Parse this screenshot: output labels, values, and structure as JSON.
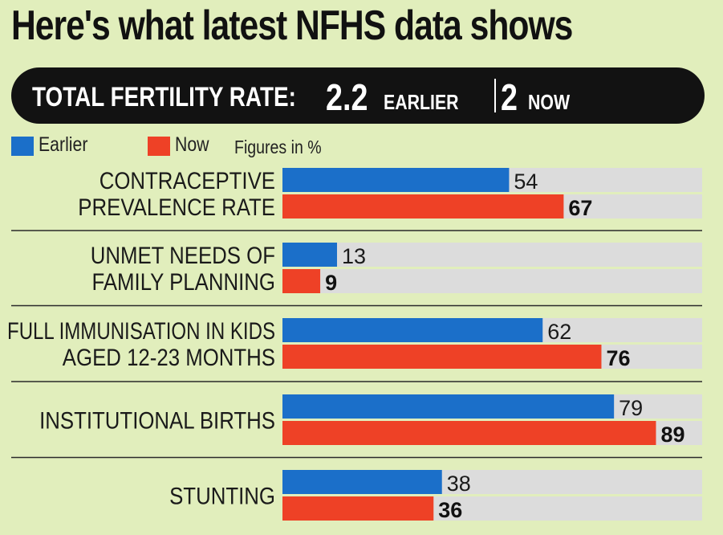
{
  "title": "Here's what latest NFHS data shows",
  "tfr": {
    "label": "TOTAL FERTILITY RATE:",
    "earlier_value": "2.2",
    "earlier_tag": "EARLIER",
    "now_value": "2",
    "now_tag": "NOW"
  },
  "legend": {
    "earlier_label": "Earlier",
    "now_label": "Now",
    "note": "Figures in %"
  },
  "colors": {
    "earlier": "#1b6fc9",
    "now": "#ee4126",
    "track": "#dcdcdc",
    "background": "#e1eebc"
  },
  "chart_data": {
    "type": "bar",
    "orientation": "horizontal",
    "title": "Here's what latest NFHS data shows",
    "unit": "%",
    "xlim": [
      0,
      100
    ],
    "categories": [
      [
        "CONTRACEPTIVE",
        "PREVALENCE RATE"
      ],
      [
        "UNMET NEEDS OF",
        "FAMILY PLANNING"
      ],
      [
        "FULL IMMUNISATION IN KIDS",
        "AGED 12-23 MONTHS"
      ],
      [
        "INSTITUTIONAL BIRTHS"
      ],
      [
        "STUNTING"
      ]
    ],
    "series": [
      {
        "name": "Earlier",
        "values": [
          54,
          13,
          62,
          79,
          38
        ]
      },
      {
        "name": "Now",
        "values": [
          67,
          9,
          76,
          89,
          36
        ]
      }
    ]
  }
}
